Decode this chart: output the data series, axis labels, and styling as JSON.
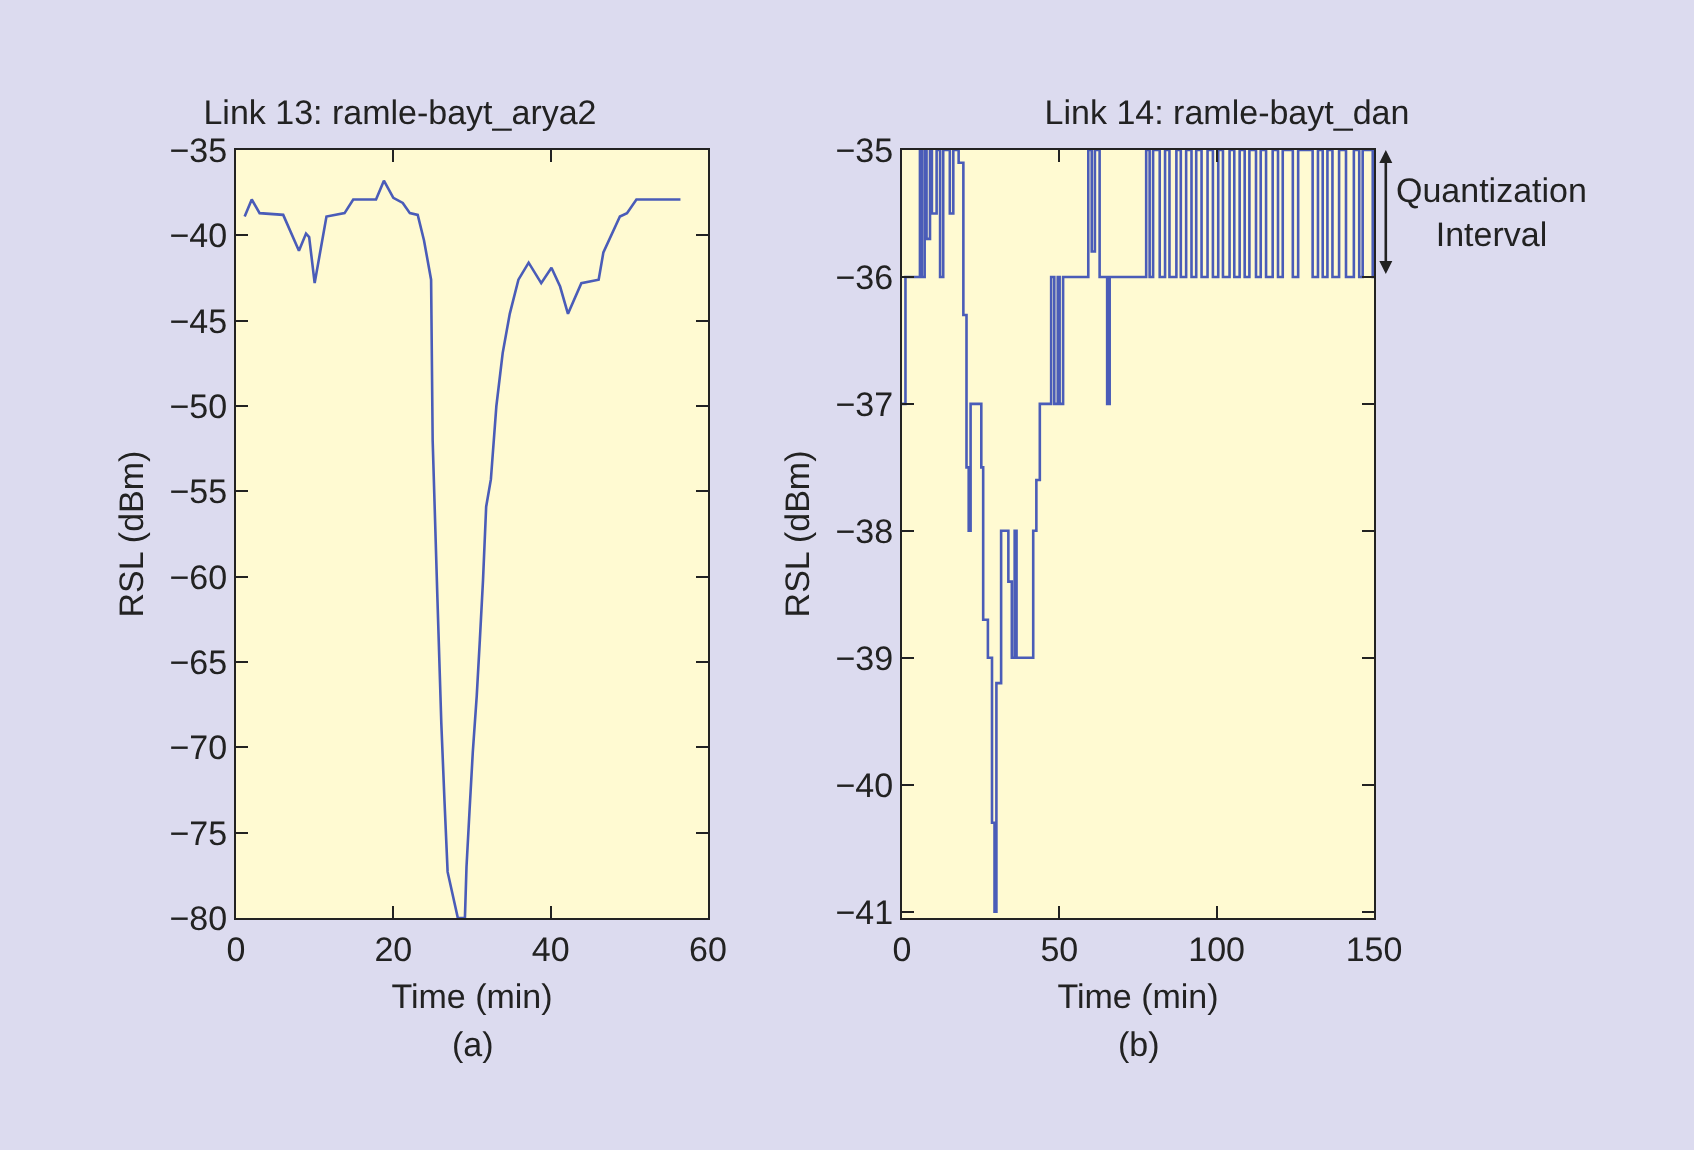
{
  "chart_data": [
    {
      "type": "line",
      "title": "Link 13: ramle-bayt_arya2",
      "xlabel": "Time (min)",
      "ylabel": "RSL (dBm)",
      "annotations": [
        "(a)"
      ],
      "x": [
        1.1,
        2.0,
        3.0,
        6.0,
        8.0,
        8.9,
        9.3,
        10.0,
        11.5,
        13.8,
        14.9,
        17.8,
        18.8,
        20.0,
        21.2,
        22.1,
        23.1,
        23.9,
        24.8,
        25.0,
        25.6,
        26.1,
        26.5,
        26.9,
        28.2,
        29.1,
        29.3,
        29.7,
        30.1,
        30.6,
        31.0,
        31.4,
        31.8,
        32.4,
        33.1,
        33.9,
        34.8,
        35.9,
        37.2,
        38.8,
        40.1,
        41.2,
        42.2,
        43.9,
        46.1,
        46.7,
        48.8,
        49.7,
        50.9,
        56.5
      ],
      "series": [
        {
          "color": "#4a5cb8",
          "values": [
            -38.9,
            -37.9,
            -38.7,
            -38.8,
            -40.9,
            -39.9,
            -40.1,
            -42.8,
            -38.9,
            -38.7,
            -37.9,
            -37.9,
            -36.8,
            -37.8,
            -38.1,
            -38.7,
            -38.8,
            -40.3,
            -42.6,
            -52.0,
            -61.2,
            -68.6,
            -73.1,
            -77.3,
            -80,
            -80,
            -77.0,
            -73.6,
            -70.3,
            -67.0,
            -63.7,
            -60.2,
            -55.9,
            -54.3,
            -50.0,
            -46.9,
            -44.6,
            -42.6,
            -41.6,
            -42.8,
            -41.9,
            -43.0,
            -44.6,
            -42.8,
            -42.6,
            -41.0,
            -38.9,
            -38.7,
            -37.9,
            -37.9
          ]
        }
      ],
      "xlim": [
        0,
        60
      ],
      "xticks": [
        0,
        20,
        40,
        60
      ],
      "ylim": [
        -80,
        -35
      ],
      "yticks": [
        -80,
        -75,
        -70,
        -65,
        -60,
        -55,
        -50,
        -45,
        -40,
        -35
      ]
    },
    {
      "type": "step",
      "title": "Link 14: ramle-bayt_dan",
      "xlabel": "Time (min)",
      "ylabel": "RSL (dBm)",
      "annotations": [
        "Quantization\nInterval",
        "(b)"
      ],
      "x": [
        0,
        1.1,
        4.7,
        5.7,
        6.3,
        7.2,
        7.8,
        8.9,
        9.5,
        11,
        12.1,
        13.1,
        15.2,
        16.3,
        18,
        19.5,
        20.5,
        21.2,
        21.8,
        24.3,
        25.2,
        25.8,
        27.3,
        28.6,
        29.4,
        30,
        31.5,
        33.2,
        33.8,
        34.9,
        35.8,
        36.4,
        40.6,
        41.7,
        42.7,
        43.8,
        46.3,
        47.4,
        48.4,
        49.5,
        50.1,
        51.2,
        58.6,
        59.2,
        60.3,
        61.3,
        62.8,
        64.5,
        65.2,
        66,
        76.6,
        77.6,
        78.7,
        79.8,
        81.9,
        83.6,
        85.0,
        87.2,
        88.6,
        90.3,
        92.0,
        93.5,
        95.2,
        97.1,
        98.8,
        100.5,
        102.0,
        104.1,
        105.6,
        107.3,
        108.9,
        110.4,
        112.5,
        114.0,
        115.7,
        117.8,
        119.5,
        121.0,
        124.2,
        125.9,
        130.5,
        132.2,
        133.7,
        135.2,
        136.8,
        138.9,
        141.1,
        143.6,
        145.3,
        146.4,
        149.6,
        150
      ],
      "series": [
        {
          "color": "#4a5cb8",
          "values": [
            -37.0,
            -36,
            -36,
            -35,
            -36,
            -35,
            -35.7,
            -35,
            -35.5,
            -35,
            -36,
            -35,
            -35.5,
            -35,
            -35.1,
            -36.3,
            -37.5,
            -38,
            -37,
            -37,
            -37.5,
            -38.7,
            -39.0,
            -40.3,
            -41,
            -39.2,
            -38,
            -38,
            -38.4,
            -39,
            -38,
            -39,
            -39,
            -38,
            -37.6,
            -37,
            -37,
            -36,
            -37,
            -36,
            -37,
            -36,
            -36,
            -35,
            -35.8,
            -35,
            -36,
            -36,
            -37,
            -36,
            -36,
            -35,
            -36,
            -35,
            -36,
            -35,
            -36,
            -35,
            -36,
            -35,
            -36,
            -35,
            -36,
            -35,
            -36,
            -35,
            -36,
            -35,
            -36,
            -35,
            -36,
            -35,
            -36,
            -35,
            -36,
            -35,
            -36,
            -35,
            -36,
            -35,
            -36,
            -35,
            -36,
            -35,
            -36,
            -35,
            -36,
            -35,
            -36,
            -35,
            -36,
            -36
          ]
        }
      ],
      "xlim": [
        0,
        150
      ],
      "xticks": [
        0,
        50,
        100,
        150
      ],
      "ylim": [
        -41.05,
        -35
      ],
      "yticks": [
        -41,
        -40,
        -39,
        -38,
        -37,
        -36,
        -35
      ]
    }
  ]
}
